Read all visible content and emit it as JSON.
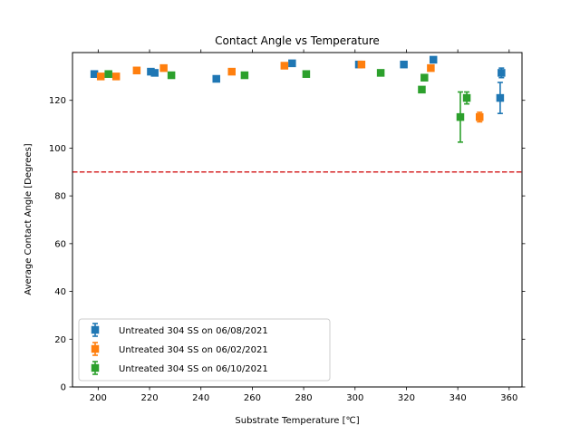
{
  "chart_data": {
    "type": "scatter",
    "title": "Contact Angle vs Temperature",
    "xlabel": "Substrate Temperature [℃]",
    "ylabel": "Average Contact Angle [Degrees]",
    "xlim": [
      190,
      365
    ],
    "ylim": [
      0,
      140
    ],
    "xticks": [
      200,
      220,
      240,
      260,
      280,
      300,
      320,
      340,
      360
    ],
    "yticks": [
      0,
      20,
      40,
      60,
      80,
      100,
      120
    ],
    "grid": false,
    "legend_position": "lower-left",
    "reference_line": {
      "y": 90,
      "color": "#d62728",
      "style": "dashed"
    },
    "series": [
      {
        "name": "Untreated 304 SS on 06/08/2021",
        "color": "#1f77b4",
        "points": [
          {
            "x": 198.5,
            "y": 131,
            "err": 0
          },
          {
            "x": 220.5,
            "y": 132,
            "err": 0
          },
          {
            "x": 222,
            "y": 131.5,
            "err": 0
          },
          {
            "x": 246,
            "y": 129,
            "err": 0
          },
          {
            "x": 275.5,
            "y": 135.5,
            "err": 0
          },
          {
            "x": 301.5,
            "y": 135,
            "err": 0
          },
          {
            "x": 319,
            "y": 135,
            "err": 0
          },
          {
            "x": 330.5,
            "y": 137,
            "err": 0
          },
          {
            "x": 356.5,
            "y": 121,
            "err": 6.5
          },
          {
            "x": 357,
            "y": 131.5,
            "err": 2
          }
        ]
      },
      {
        "name": "Untreated 304 SS on 06/02/2021",
        "color": "#ff7f0e",
        "points": [
          {
            "x": 201,
            "y": 130,
            "err": 0
          },
          {
            "x": 207,
            "y": 130,
            "err": 0
          },
          {
            "x": 215,
            "y": 132.5,
            "err": 0
          },
          {
            "x": 225.5,
            "y": 133.5,
            "err": 0
          },
          {
            "x": 252,
            "y": 132,
            "err": 0
          },
          {
            "x": 272.5,
            "y": 134.5,
            "err": 0
          },
          {
            "x": 302.5,
            "y": 135,
            "err": 0
          },
          {
            "x": 329.5,
            "y": 133.5,
            "err": 0
          },
          {
            "x": 348.5,
            "y": 113,
            "err": 2
          }
        ]
      },
      {
        "name": "Untreated 304 SS on 06/10/2021",
        "color": "#2ca02c",
        "points": [
          {
            "x": 204,
            "y": 131,
            "err": 0
          },
          {
            "x": 228.5,
            "y": 130.5,
            "err": 0
          },
          {
            "x": 257,
            "y": 130.5,
            "err": 0
          },
          {
            "x": 281,
            "y": 131,
            "err": 0
          },
          {
            "x": 310,
            "y": 131.5,
            "err": 0
          },
          {
            "x": 326,
            "y": 124.5,
            "err": 0
          },
          {
            "x": 327,
            "y": 129.5,
            "err": 0
          },
          {
            "x": 341,
            "y": 113,
            "err": 10.5
          },
          {
            "x": 343.5,
            "y": 121,
            "err": 2.5
          }
        ]
      }
    ]
  }
}
